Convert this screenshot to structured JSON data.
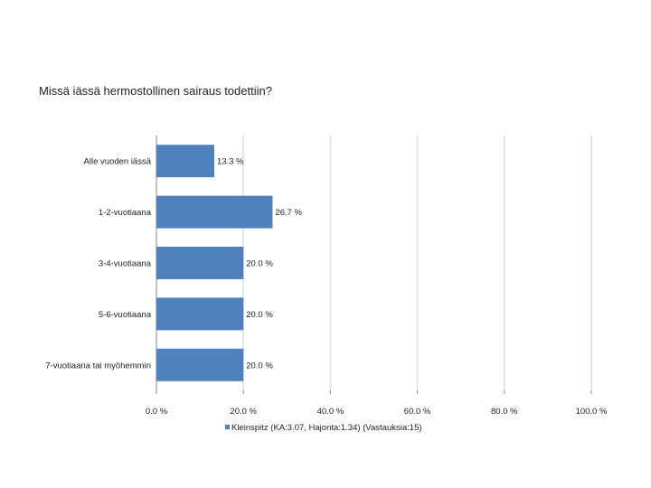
{
  "chart_data": {
    "type": "bar",
    "orientation": "horizontal",
    "title": "Missä iässä hermostollinen sairaus todettiin?",
    "categories": [
      "Alle vuoden iässä",
      "1-2-vuotiaana",
      "3-4-vuotiaana",
      "5-6-vuotiaana",
      "7-vuotiaana tai myöhemmin"
    ],
    "series": [
      {
        "name": "Kleinspitz (KA:3.07, Hajonta:1.34) (Vastauksia:15)",
        "values": [
          13.3,
          26.7,
          20.0,
          20.0,
          20.0
        ],
        "value_labels": [
          "13.3 %",
          "26.7 %",
          "20.0 %",
          "20.0 %",
          "20.0 %"
        ]
      }
    ],
    "xlim": [
      0,
      100
    ],
    "xticks": [
      "0.0 %",
      "20.0 %",
      "40.0 %",
      "60.0 %",
      "80.0 %",
      "100.0 %"
    ],
    "xtick_values": [
      0,
      20,
      40,
      60,
      80,
      100
    ],
    "grid": true,
    "legend_position": "bottom",
    "bar_color": "#4f81bd",
    "grid_color": "#d9e1ea"
  }
}
